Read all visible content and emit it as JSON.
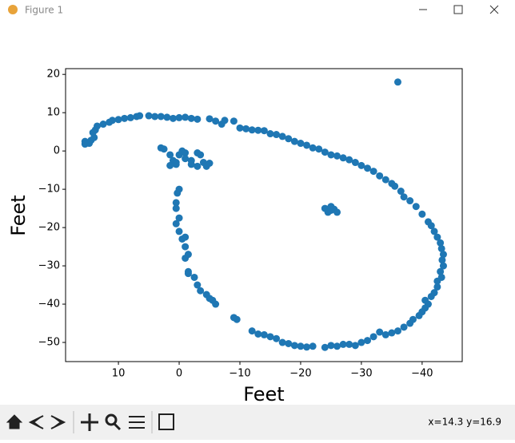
{
  "window": {
    "title": "Figure 1",
    "status": "x=14.3 y=16.9"
  },
  "chart_data": {
    "type": "scatter",
    "color": "#1f77b4",
    "xlabel": "Feet",
    "ylabel": "Feet",
    "xlim": [
      18.7,
      -46.6
    ],
    "ylim": [
      -55,
      21.5
    ],
    "xticks": [
      10,
      0,
      {
        "value": -10,
        "label": "−10"
      },
      {
        "value": -20,
        "label": "−20"
      },
      {
        "value": -30,
        "label": "−30"
      },
      {
        "value": -40,
        "label": "−40"
      }
    ],
    "yticks": [
      20,
      10,
      0,
      {
        "value": -10,
        "label": "−10"
      },
      {
        "value": -20,
        "label": "−20"
      },
      {
        "value": -30,
        "label": "−30"
      },
      {
        "value": -40,
        "label": "−40"
      },
      {
        "value": -50,
        "label": "−50"
      }
    ],
    "x": [
      15.5,
      15.5,
      14.8,
      14.5,
      14,
      14.2,
      13.8,
      13.5,
      12.5,
      11.5,
      11,
      10,
      9,
      8,
      7,
      6.5,
      5,
      4,
      3,
      2,
      1,
      0,
      -1,
      -2,
      -3,
      -5,
      -6,
      -7,
      -7.5,
      -9,
      -10,
      -11,
      -12,
      -13,
      -14,
      -15,
      -16,
      -17,
      -18,
      -19,
      -20,
      -21,
      -22,
      -23,
      -24,
      -25,
      -26,
      -27,
      -28,
      -29,
      -30,
      -31,
      -32,
      -33,
      -34,
      -35,
      -35.5,
      -36.5,
      -37,
      -38,
      -39,
      -40,
      -41,
      -41.5,
      -42,
      -42.5,
      -43,
      -43.2,
      -43.5,
      -43.3,
      -43.5,
      -43,
      -43.2,
      -42.5,
      -42.5,
      -42,
      -41.5,
      -40.5,
      -41,
      -40.5,
      -40,
      -39.5,
      -38.5,
      -38,
      -37,
      -36,
      -35,
      -34,
      -33,
      -32,
      -31,
      -30,
      -29,
      -28,
      -27,
      -26,
      -25,
      -24,
      -22,
      -21,
      -20,
      -19,
      -18,
      -17,
      -16,
      -15,
      -14,
      -13,
      -12,
      -9.5,
      -9,
      -6,
      -5.5,
      -5,
      -4.5,
      -3.5,
      -3,
      -2.5,
      -1.5,
      -1.5,
      -1,
      -1.5,
      -1,
      -0.5,
      -1,
      0,
      0.5,
      0,
      0.5,
      0.5,
      0.3,
      0,
      3,
      2.5,
      1.5,
      1,
      0.5,
      0.5,
      0,
      -0.5,
      -1,
      -1,
      -2,
      -2,
      -3,
      -3.5,
      -4,
      -4.5,
      -5,
      -3,
      1.5,
      -24,
      -25,
      -25.5,
      -24.5,
      -26,
      -25,
      -36
    ],
    "values": [
      2.5,
      1.8,
      2,
      2.8,
      3.5,
      4.8,
      5.5,
      6.5,
      7,
      7.5,
      8,
      8.2,
      8.5,
      8.7,
      9,
      9.2,
      9.2,
      9,
      9,
      8.8,
      8.5,
      8.7,
      8.8,
      8.5,
      8.3,
      8.4,
      7.8,
      7,
      8,
      7.8,
      6,
      5.8,
      5.5,
      5.4,
      5.3,
      4.5,
      4.3,
      3.8,
      3.2,
      2.5,
      2,
      1.5,
      0.8,
      0.5,
      -0.3,
      -1,
      -1.3,
      -1.8,
      -2.3,
      -3,
      -3.8,
      -4.5,
      -5.3,
      -6.5,
      -7.5,
      -8.5,
      -9.2,
      -10.5,
      -12,
      -13,
      -14.5,
      -16.5,
      -18.5,
      -19.5,
      -21,
      -22.5,
      -24,
      -25.5,
      -27,
      -28.5,
      -30,
      -31.5,
      -33,
      -34,
      -35.5,
      -37,
      -38,
      -39,
      -40,
      -41,
      -42,
      -43,
      -44,
      -45,
      -46,
      -47,
      -47.5,
      -48,
      -47.3,
      -48.5,
      -49.5,
      -50,
      -50.8,
      -50.5,
      -50.5,
      -51,
      -50.8,
      -51.3,
      -51,
      -51.2,
      -51,
      -50.8,
      -50.3,
      -50,
      -49,
      -48.5,
      -48,
      -47.8,
      -47,
      -44,
      -43.5,
      -40,
      -39,
      -38.5,
      -37.5,
      -36.5,
      -35,
      -33,
      -32,
      -31.5,
      -28,
      -27,
      -25,
      -23,
      -22.5,
      -21,
      -19,
      -17.5,
      -15,
      -13.5,
      -11,
      -10,
      0.8,
      0.5,
      -1,
      -2.5,
      -3,
      -3.5,
      -1,
      0,
      -0.5,
      -2,
      -2.5,
      -3.5,
      -0.5,
      -1,
      -3,
      -4,
      -3.2,
      -4,
      -3.8,
      -15,
      -14.5,
      -15.2,
      -16,
      -16,
      -15.5,
      18
    ]
  }
}
